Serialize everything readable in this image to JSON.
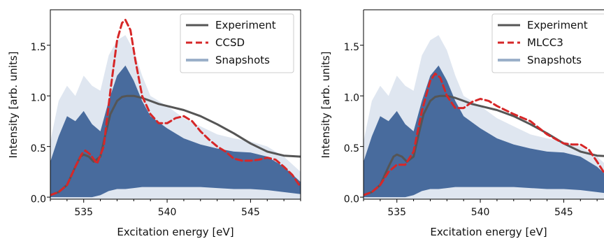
{
  "chart_data": [
    {
      "type": "line",
      "xlabel": "Excitation energy [eV]",
      "ylabel": "Intensity [arb. units]",
      "xlim": [
        533.0,
        548.0
      ],
      "ylim": [
        -0.02,
        1.85
      ],
      "xticks": [
        535,
        540,
        545
      ],
      "xtick_labels": [
        "535",
        "540",
        "545"
      ],
      "yticks": [
        0.0,
        0.5,
        1.0,
        1.5
      ],
      "ytick_labels": [
        "0.0",
        "0.5",
        "1.0",
        "1.5"
      ],
      "grid": false,
      "legend_position": "top-right",
      "series": [
        {
          "name": "Experiment",
          "color": "#555555",
          "style": "solid",
          "x": [
            533.0,
            533.5,
            534.0,
            534.5,
            534.8,
            535.0,
            535.3,
            535.6,
            536.0,
            536.3,
            536.6,
            537.0,
            537.3,
            537.6,
            538.0,
            538.5,
            539.0,
            539.5,
            540.0,
            541.0,
            542.0,
            543.0,
            544.0,
            545.0,
            546.0,
            547.0,
            548.0
          ],
          "y": [
            0.02,
            0.05,
            0.12,
            0.3,
            0.4,
            0.42,
            0.4,
            0.35,
            0.4,
            0.62,
            0.82,
            0.95,
            0.99,
            1.0,
            1.0,
            0.98,
            0.95,
            0.92,
            0.9,
            0.86,
            0.8,
            0.72,
            0.63,
            0.53,
            0.45,
            0.41,
            0.4
          ]
        },
        {
          "name": "CCSD",
          "color": "#d62728",
          "style": "dashed",
          "x": [
            533.0,
            533.5,
            534.0,
            534.5,
            534.9,
            535.1,
            535.4,
            535.8,
            536.2,
            536.6,
            537.0,
            537.3,
            537.5,
            537.8,
            538.1,
            538.5,
            539.0,
            539.5,
            540.0,
            540.5,
            541.0,
            541.5,
            542.0,
            542.5,
            543.0,
            543.5,
            544.0,
            544.5,
            545.0,
            545.5,
            546.0,
            546.5,
            547.0,
            547.5,
            548.0
          ],
          "y": [
            0.02,
            0.05,
            0.12,
            0.3,
            0.43,
            0.46,
            0.42,
            0.33,
            0.5,
            1.05,
            1.55,
            1.72,
            1.75,
            1.65,
            1.35,
            1.0,
            0.82,
            0.73,
            0.73,
            0.78,
            0.8,
            0.75,
            0.65,
            0.57,
            0.5,
            0.45,
            0.38,
            0.36,
            0.36,
            0.37,
            0.39,
            0.37,
            0.3,
            0.22,
            0.1
          ]
        },
        {
          "name": "Snapshots",
          "color": "#3b6196",
          "style": "band",
          "x": [
            533.0,
            533.5,
            534.0,
            534.5,
            535.0,
            535.5,
            536.0,
            536.5,
            537.0,
            537.5,
            538.0,
            538.5,
            539.0,
            540.0,
            541.0,
            542.0,
            543.0,
            544.0,
            545.0,
            546.0,
            547.0,
            548.0
          ],
          "y_upper": [
            0.35,
            0.6,
            0.8,
            0.75,
            0.85,
            0.72,
            0.65,
            0.95,
            1.2,
            1.3,
            1.15,
            0.95,
            0.8,
            0.68,
            0.58,
            0.52,
            0.48,
            0.45,
            0.44,
            0.4,
            0.3,
            0.15
          ],
          "y_faint": [
            0.55,
            0.95,
            1.1,
            1.0,
            1.2,
            1.1,
            1.05,
            1.4,
            1.55,
            1.6,
            1.45,
            1.2,
            1.0,
            0.9,
            0.78,
            0.7,
            0.62,
            0.58,
            0.55,
            0.5,
            0.4,
            0.25
          ],
          "y_lower": [
            0.0,
            0.0,
            0.0,
            0.0,
            0.0,
            0.0,
            0.02,
            0.06,
            0.08,
            0.08,
            0.09,
            0.1,
            0.1,
            0.1,
            0.1,
            0.1,
            0.09,
            0.08,
            0.08,
            0.07,
            0.05,
            0.03
          ]
        }
      ]
    },
    {
      "type": "line",
      "xlabel": "Excitation energy [eV]",
      "ylabel": "Intensity [arb. units]",
      "xlim": [
        533.0,
        548.0
      ],
      "ylim": [
        -0.02,
        1.85
      ],
      "xticks": [
        535,
        540,
        545
      ],
      "xtick_labels": [
        "535",
        "540",
        "545"
      ],
      "yticks": [
        0.0,
        0.5,
        1.0,
        1.5
      ],
      "ytick_labels": [
        "0.0",
        "0.5",
        "1.0",
        "1.5"
      ],
      "grid": false,
      "legend_position": "top-right",
      "series": [
        {
          "name": "Experiment",
          "color": "#555555",
          "style": "solid",
          "x": [
            533.0,
            533.5,
            534.0,
            534.5,
            534.8,
            535.0,
            535.3,
            535.6,
            536.0,
            536.3,
            536.6,
            537.0,
            537.3,
            537.6,
            538.0,
            538.5,
            539.0,
            539.5,
            540.0,
            541.0,
            542.0,
            543.0,
            544.0,
            545.0,
            546.0,
            547.0,
            548.0
          ],
          "y": [
            0.02,
            0.05,
            0.12,
            0.3,
            0.4,
            0.42,
            0.4,
            0.35,
            0.4,
            0.62,
            0.82,
            0.95,
            0.99,
            1.0,
            1.0,
            0.98,
            0.95,
            0.92,
            0.9,
            0.86,
            0.8,
            0.72,
            0.63,
            0.53,
            0.45,
            0.41,
            0.4
          ]
        },
        {
          "name": "MLCC3",
          "color": "#d62728",
          "style": "dashed",
          "x": [
            533.0,
            533.5,
            534.0,
            534.5,
            535.0,
            535.5,
            536.0,
            536.5,
            537.0,
            537.3,
            537.6,
            538.0,
            538.5,
            539.0,
            539.5,
            540.0,
            540.5,
            541.0,
            542.0,
            543.0,
            544.0,
            545.0,
            545.5,
            546.0,
            546.5,
            547.0,
            547.5,
            548.0
          ],
          "y": [
            0.02,
            0.05,
            0.12,
            0.25,
            0.32,
            0.32,
            0.45,
            0.85,
            1.15,
            1.22,
            1.18,
            1.0,
            0.88,
            0.88,
            0.94,
            0.97,
            0.95,
            0.9,
            0.82,
            0.75,
            0.62,
            0.53,
            0.52,
            0.52,
            0.47,
            0.35,
            0.22,
            0.1
          ]
        },
        {
          "name": "Snapshots",
          "color": "#3b6196",
          "style": "band",
          "x": [
            533.0,
            533.5,
            534.0,
            534.5,
            535.0,
            535.5,
            536.0,
            536.5,
            537.0,
            537.5,
            538.0,
            538.5,
            539.0,
            540.0,
            541.0,
            542.0,
            543.0,
            544.0,
            545.0,
            546.0,
            547.0,
            548.0
          ],
          "y_upper": [
            0.35,
            0.6,
            0.8,
            0.75,
            0.85,
            0.72,
            0.65,
            0.95,
            1.2,
            1.3,
            1.15,
            0.95,
            0.8,
            0.68,
            0.58,
            0.52,
            0.48,
            0.45,
            0.44,
            0.4,
            0.3,
            0.15
          ],
          "y_faint": [
            0.55,
            0.95,
            1.1,
            1.0,
            1.2,
            1.1,
            1.05,
            1.4,
            1.55,
            1.6,
            1.45,
            1.2,
            1.0,
            0.9,
            0.78,
            0.7,
            0.62,
            0.58,
            0.55,
            0.5,
            0.4,
            0.25
          ],
          "y_lower": [
            0.0,
            0.0,
            0.0,
            0.0,
            0.0,
            0.0,
            0.02,
            0.06,
            0.08,
            0.08,
            0.09,
            0.1,
            0.1,
            0.1,
            0.1,
            0.1,
            0.09,
            0.08,
            0.08,
            0.07,
            0.05,
            0.03
          ]
        }
      ]
    }
  ]
}
